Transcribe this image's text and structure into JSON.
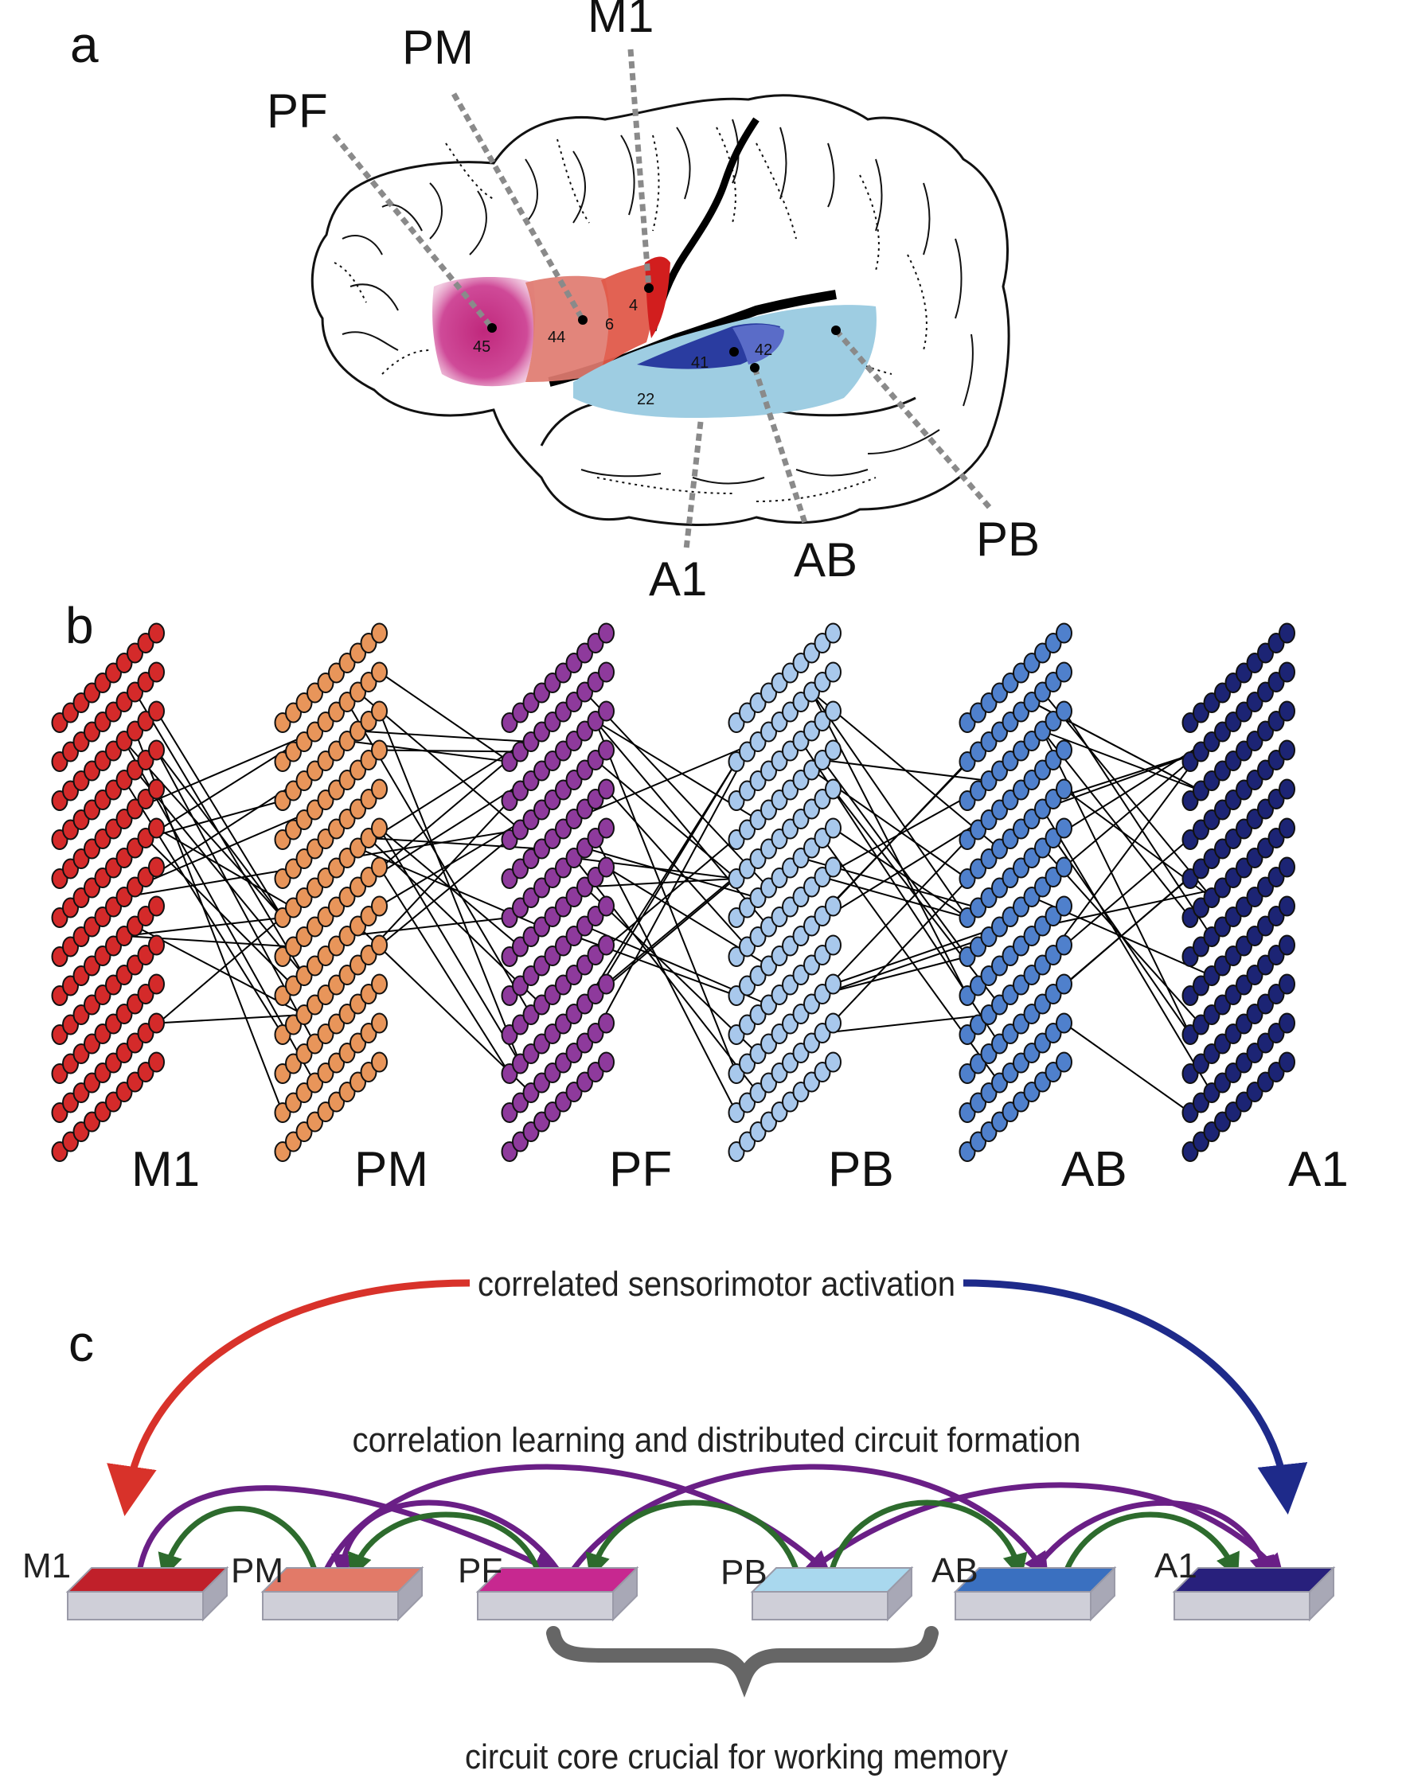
{
  "panels": {
    "a": "a",
    "b": "b",
    "c": "c"
  },
  "panel_a": {
    "region_labels": {
      "PF": "PF",
      "PM": "PM",
      "M1": "M1",
      "A1": "A1",
      "AB": "AB",
      "PB": "PB"
    },
    "brodmann_areas": [
      "45",
      "44",
      "6",
      "4",
      "41",
      "42",
      "22"
    ]
  },
  "panel_b": {
    "areas": [
      {
        "label": "M1",
        "color": "#d42a2a"
      },
      {
        "label": "PM",
        "color": "#e8955a"
      },
      {
        "label": "PF",
        "color": "#8e3a9c"
      },
      {
        "label": "PB",
        "color": "#a8c8ec"
      },
      {
        "label": "AB",
        "color": "#4f80cc"
      },
      {
        "label": "A1",
        "color": "#1c2474"
      }
    ]
  },
  "panel_c": {
    "top_caption": "correlated sensorimotor activation",
    "mid_caption": "correlation learning and distributed circuit formation",
    "bottom_caption": "circuit core crucial for working memory",
    "blocks": [
      {
        "label": "M1",
        "color": "#c0202a"
      },
      {
        "label": "PM",
        "color": "#e27a68"
      },
      {
        "label": "PF",
        "color": "#c72890"
      },
      {
        "label": "PB",
        "color": "#a9d8ee"
      },
      {
        "label": "AB",
        "color": "#3a70c0"
      },
      {
        "label": "A1",
        "color": "#28207c"
      }
    ],
    "colors": {
      "red_arrow": "#d8322a",
      "blue_arrow": "#1e2a8a",
      "purple_arc": "#6a1f86",
      "green_arc": "#2d6b2d",
      "brace": "#666666"
    }
  }
}
